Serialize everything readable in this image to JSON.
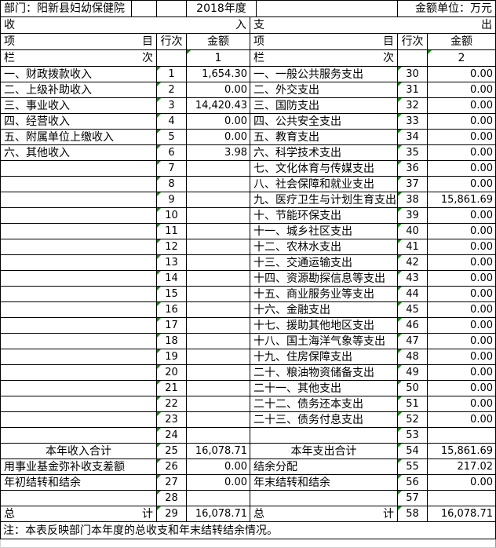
{
  "header": {
    "department": "部门：阳新县妇幼保健院",
    "year": "2018年度",
    "unit": "金额单位：万元"
  },
  "section_bar": {
    "income_start": "收",
    "income_end": "入",
    "expense_start": "支",
    "expense_end": "出"
  },
  "column_headers": {
    "item_start": "项",
    "item_end": "目",
    "line_no": "行次",
    "amount": "金额",
    "lan_start": "栏",
    "lan_end": "次",
    "income_amount_col_no": "1",
    "expense_amount_col_no": "2"
  },
  "table_rows": [
    {
      "left": {
        "item": "一、财政拨款收入",
        "no": "1",
        "amount": "1,654.30"
      },
      "right": {
        "item": "一、一般公共服务支出",
        "no": "30",
        "amount": "0.00"
      }
    },
    {
      "left": {
        "item": "二、上级补助收入",
        "no": "2",
        "amount": "0.00"
      },
      "right": {
        "item": "二、外交支出",
        "no": "31",
        "amount": "0.00"
      }
    },
    {
      "left": {
        "item": "三、事业收入",
        "no": "3",
        "amount": "14,420.43"
      },
      "right": {
        "item": "三、国防支出",
        "no": "32",
        "amount": "0.00"
      }
    },
    {
      "left": {
        "item": "四、经营收入",
        "no": "4",
        "amount": "0.00"
      },
      "right": {
        "item": "四、公共安全支出",
        "no": "33",
        "amount": "0.00"
      }
    },
    {
      "left": {
        "item": "五、附属单位上缴收入",
        "no": "5",
        "amount": "0.00"
      },
      "right": {
        "item": "五、教育支出",
        "no": "34",
        "amount": "0.00"
      }
    },
    {
      "left": {
        "item": "六、其他收入",
        "no": "6",
        "amount": "3.98"
      },
      "right": {
        "item": "六、科学技术支出",
        "no": "35",
        "amount": "0.00"
      }
    },
    {
      "left": {
        "item": "",
        "no": "7",
        "amount": ""
      },
      "right": {
        "item": "七、文化体育与传媒支出",
        "no": "36",
        "amount": "0.00"
      }
    },
    {
      "left": {
        "item": "",
        "no": "8",
        "amount": ""
      },
      "right": {
        "item": "八、社会保障和就业支出",
        "no": "37",
        "amount": "0.00"
      }
    },
    {
      "left": {
        "item": "",
        "no": "9",
        "amount": ""
      },
      "right": {
        "item": "九、医疗卫生与计划生育支出",
        "no": "38",
        "amount": "15,861.69"
      }
    },
    {
      "left": {
        "item": "",
        "no": "10",
        "amount": ""
      },
      "right": {
        "item": "十、节能环保支出",
        "no": "39",
        "amount": "0.00"
      }
    },
    {
      "left": {
        "item": "",
        "no": "11",
        "amount": ""
      },
      "right": {
        "item": "十一、城乡社区支出",
        "no": "40",
        "amount": "0.00"
      }
    },
    {
      "left": {
        "item": "",
        "no": "12",
        "amount": ""
      },
      "right": {
        "item": "十二、农林水支出",
        "no": "41",
        "amount": "0.00"
      }
    },
    {
      "left": {
        "item": "",
        "no": "13",
        "amount": ""
      },
      "right": {
        "item": "十三、交通运输支出",
        "no": "42",
        "amount": "0.00"
      }
    },
    {
      "left": {
        "item": "",
        "no": "14",
        "amount": ""
      },
      "right": {
        "item": "十四、资源勘探信息等支出",
        "no": "43",
        "amount": "0.00"
      }
    },
    {
      "left": {
        "item": "",
        "no": "15",
        "amount": ""
      },
      "right": {
        "item": "十五、商业服务业等支出",
        "no": "44",
        "amount": "0.00"
      }
    },
    {
      "left": {
        "item": "",
        "no": "16",
        "amount": ""
      },
      "right": {
        "item": "十六、金融支出",
        "no": "45",
        "amount": "0.00"
      }
    },
    {
      "left": {
        "item": "",
        "no": "17",
        "amount": ""
      },
      "right": {
        "item": "十七、援助其他地区支出",
        "no": "46",
        "amount": "0.00"
      }
    },
    {
      "left": {
        "item": "",
        "no": "18",
        "amount": ""
      },
      "right": {
        "item": "十八、国土海洋气象等支出",
        "no": "47",
        "amount": "0.00"
      }
    },
    {
      "left": {
        "item": "",
        "no": "19",
        "amount": ""
      },
      "right": {
        "item": "十九、住房保障支出",
        "no": "48",
        "amount": "0.00"
      }
    },
    {
      "left": {
        "item": "",
        "no": "20",
        "amount": ""
      },
      "right": {
        "item": "二十、粮油物资储备支出",
        "no": "49",
        "amount": "0.00"
      }
    },
    {
      "left": {
        "item": "",
        "no": "21",
        "amount": ""
      },
      "right": {
        "item": "二十一、其他支出",
        "no": "50",
        "amount": "0.00"
      }
    },
    {
      "left": {
        "item": "",
        "no": "22",
        "amount": ""
      },
      "right": {
        "item": "二十二、债务还本支出",
        "no": "51",
        "amount": "0.00"
      }
    },
    {
      "left": {
        "item": "",
        "no": "23",
        "amount": ""
      },
      "right": {
        "item": "二十三、债务付息支出",
        "no": "52",
        "amount": "0.00"
      }
    },
    {
      "left": {
        "item": "",
        "no": "24",
        "amount": ""
      },
      "right": {
        "item": "",
        "no": "53",
        "amount": ""
      }
    },
    {
      "left": {
        "item": "本年收入合计",
        "align": "center",
        "no": "25",
        "amount": "16,078.71"
      },
      "right": {
        "item": "本年支出合计",
        "align": "center",
        "no": "54",
        "amount": "15,861.69"
      }
    },
    {
      "left": {
        "item": "用事业基金弥补收支差额",
        "no": "26",
        "amount": "0.00"
      },
      "right": {
        "item": "结余分配",
        "no": "55",
        "amount": "217.02"
      }
    },
    {
      "left": {
        "item": "年初结转和结余",
        "no": "27",
        "amount": "0.00"
      },
      "right": {
        "item": "年末结转和结余",
        "no": "56",
        "amount": "0.00"
      }
    },
    {
      "left": {
        "item": "",
        "no": "28",
        "amount": ""
      },
      "right": {
        "item": "",
        "no": "57",
        "amount": ""
      }
    },
    {
      "left": {
        "item": "总",
        "item_end": "计",
        "no": "29",
        "amount": "16,078.71"
      },
      "right": {
        "item": "总",
        "item_end": "计",
        "no": "58",
        "amount": "16,078.71"
      }
    }
  ],
  "footnote": "注：本表反映部门本年度的总收支和年末结转结余情况。",
  "colors": {
    "indicator_green": "#138713",
    "border_black": "#000000",
    "ghost_grid_gray": "#cfcfcf"
  }
}
